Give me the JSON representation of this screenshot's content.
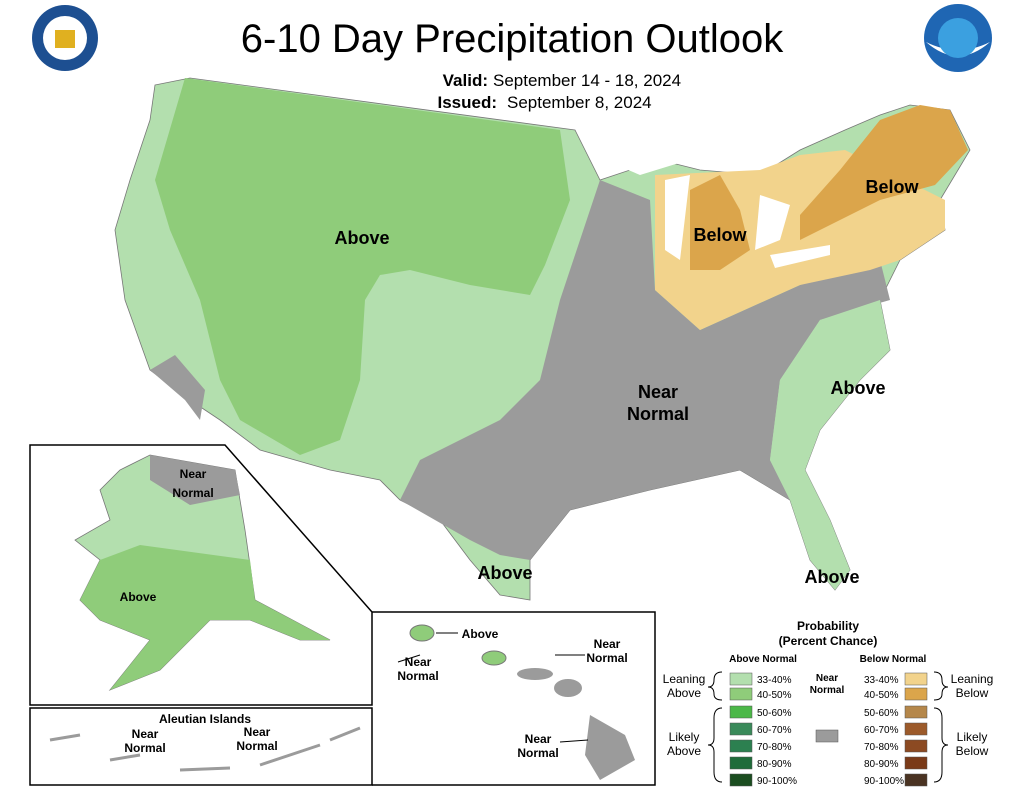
{
  "header": {
    "title": "6-10 Day Precipitation Outlook",
    "valid_label": "Valid:",
    "valid": "September 14 - 18, 2024",
    "issued_label": "Issued:",
    "issued": "September 8, 2024"
  },
  "map_labels": [
    [
      "Above"
    ],
    [
      "Below"
    ],
    [
      "Below"
    ],
    [
      "Near",
      "Normal"
    ],
    [
      "Above"
    ],
    [
      "Above"
    ],
    [
      "Above"
    ],
    [
      "Near",
      "Normal"
    ],
    [
      "Above"
    ],
    [
      "Near",
      "Normal"
    ],
    [
      "Near",
      "Normal"
    ],
    [
      "Above"
    ],
    [
      "Near",
      "Normal"
    ],
    [
      "Near",
      "Normal"
    ],
    [
      "Near",
      "Normal"
    ]
  ],
  "aleutian_title": "Aleutian Islands",
  "legend": {
    "title": "Probability",
    "subtitle": "(Percent Chance)",
    "above_title": "Above Normal",
    "below_title": "Below Normal",
    "above": [
      {
        "label": "33-40%",
        "color": "#b3dfae"
      },
      {
        "label": "40-50%",
        "color": "#8fcc7a"
      },
      {
        "label": "50-60%",
        "color": "#4cb848"
      },
      {
        "label": "60-70%",
        "color": "#3a8a5a"
      },
      {
        "label": "70-80%",
        "color": "#2c8050"
      },
      {
        "label": "80-90%",
        "color": "#1f6c3a"
      },
      {
        "label": "90-100%",
        "color": "#1b4d20"
      }
    ],
    "below": [
      {
        "label": "33-40%",
        "color": "#f2d38c"
      },
      {
        "label": "40-50%",
        "color": "#dba54b"
      },
      {
        "label": "50-60%",
        "color": "#b5874a"
      },
      {
        "label": "60-70%",
        "color": "#9c5a2a"
      },
      {
        "label": "70-80%",
        "color": "#8c4a22"
      },
      {
        "label": "80-90%",
        "color": "#7a3a18"
      },
      {
        "label": "90-100%",
        "color": "#4a3322"
      }
    ],
    "near": {
      "lines": [
        "Near",
        "Normal"
      ],
      "color": "#9b9b9b"
    },
    "leaning_above": [
      "Leaning",
      "Above"
    ],
    "likely_above": [
      "Likely",
      "Above"
    ],
    "leaning_below": [
      "Leaning",
      "Below"
    ],
    "likely_below": [
      "Likely",
      "Below"
    ]
  }
}
